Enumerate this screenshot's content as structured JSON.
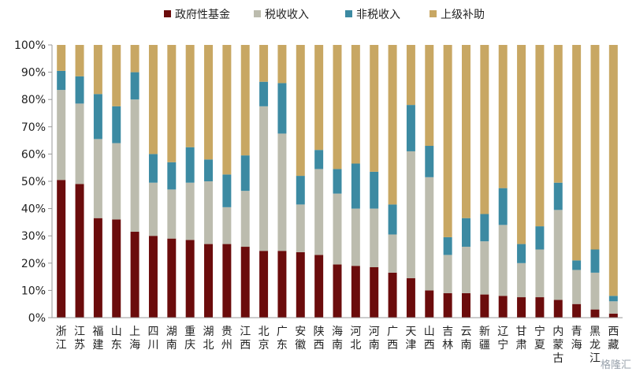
{
  "chart_data": {
    "type": "bar",
    "stacked": true,
    "title": "",
    "xlabel": "",
    "ylabel": "",
    "ylim": [
      0,
      100
    ],
    "y_ticks": [
      "0%",
      "10%",
      "20%",
      "30%",
      "40%",
      "50%",
      "60%",
      "70%",
      "80%",
      "90%",
      "100%"
    ],
    "legend_position": "top-center",
    "grid": false,
    "categories": [
      "浙江",
      "江苏",
      "福建",
      "山东",
      "上海",
      "四川",
      "湖南",
      "重庆",
      "湖北",
      "贵州",
      "江西",
      "北京",
      "广东",
      "安徽",
      "陕西",
      "海南",
      "河北",
      "河南",
      "广西",
      "天津",
      "山西",
      "吉林",
      "云南",
      "新疆",
      "辽宁",
      "甘肃",
      "宁夏",
      "内蒙古",
      "青海",
      "黑龙江",
      "西藏"
    ],
    "series": [
      {
        "name": "政府性基金",
        "color": "#6b0c0c",
        "values": [
          50.5,
          49,
          36.5,
          36,
          31.5,
          30,
          29,
          28.5,
          27,
          27,
          26,
          24.5,
          24.5,
          24,
          23,
          19.5,
          19,
          18.5,
          16.5,
          14.5,
          10,
          9,
          9,
          8.5,
          8,
          7.5,
          7.5,
          6.5,
          5,
          3,
          1.5
        ]
      },
      {
        "name": "税收收入",
        "color": "#bcbcae",
        "values": [
          33,
          29.5,
          29,
          28,
          48.5,
          19.5,
          18,
          21,
          23,
          13.5,
          20.5,
          53,
          43,
          17.5,
          31.5,
          26,
          21,
          21.5,
          14,
          46.5,
          41.5,
          14,
          17,
          19.5,
          26,
          12.5,
          17.5,
          33,
          12.5,
          13.5,
          4.5
        ]
      },
      {
        "name": "非税收入",
        "color": "#3c8aa2",
        "values": [
          7,
          10,
          16.5,
          13.5,
          10,
          10.5,
          10,
          13,
          8,
          12,
          13,
          9,
          18.5,
          10.5,
          7,
          9,
          16.5,
          13.5,
          11,
          17,
          11.5,
          6.5,
          10.5,
          10,
          13.5,
          7,
          8.5,
          10,
          3.5,
          8.5,
          2
        ]
      },
      {
        "name": "上级补助",
        "color": "#c8a763",
        "values": [
          9.5,
          11.5,
          18,
          22.5,
          10,
          40,
          43,
          37.5,
          42,
          47.5,
          40.5,
          13.5,
          14,
          48,
          38.5,
          45.5,
          43.5,
          46.5,
          58.5,
          22,
          37,
          70.5,
          63.5,
          62,
          52.5,
          73,
          66.5,
          50.5,
          79,
          75,
          92
        ]
      }
    ]
  },
  "watermark": "格隆汇"
}
